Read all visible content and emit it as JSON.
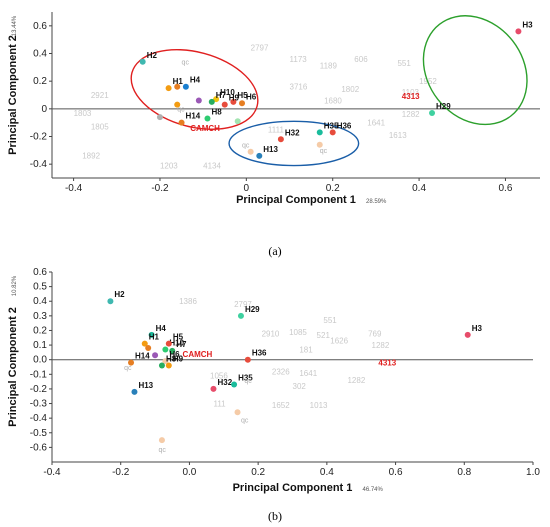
{
  "chart_data": [
    {
      "type": "scatter",
      "panel_caption": "(a)",
      "xlabel": "Principal Component 1",
      "ylabel": "Principal Component 2",
      "x_variance": "28.59%",
      "y_variance": "13.44%",
      "xlim": [
        -0.45,
        0.68
      ],
      "ylim": [
        -0.5,
        0.7
      ],
      "xticks": [
        -0.4,
        -0.2,
        0.0,
        0.2,
        0.4,
        0.6
      ],
      "yticks": [
        -0.4,
        -0.2,
        0.0,
        0.2,
        0.4,
        0.6
      ],
      "xtick_labels": [
        "-0.4",
        "-0.2",
        "0",
        "0.2",
        "0.4",
        "0.6"
      ],
      "ytick_labels": [
        "-0.4",
        "-0.2",
        "0",
        "0.2",
        "0.4",
        "0.6"
      ],
      "points": [
        {
          "label": "H2",
          "x": -0.24,
          "y": 0.34,
          "color": "#3fb8b0"
        },
        {
          "label": "H1",
          "x": -0.18,
          "y": 0.15,
          "color": "#f39c12"
        },
        {
          "label": "",
          "x": -0.16,
          "y": 0.16,
          "color": "#e67e22"
        },
        {
          "label": "H4",
          "x": -0.14,
          "y": 0.16,
          "color": "#1a7fd0"
        },
        {
          "label": "",
          "x": -0.11,
          "y": 0.06,
          "color": "#9b59b6"
        },
        {
          "label": "H10",
          "x": -0.07,
          "y": 0.07,
          "color": "#f1c40f"
        },
        {
          "label": "H7",
          "x": -0.08,
          "y": 0.05,
          "color": "#27ae60"
        },
        {
          "label": "H5",
          "x": -0.03,
          "y": 0.05,
          "color": "#e74c3c"
        },
        {
          "label": "H6",
          "x": -0.01,
          "y": 0.04,
          "color": "#e67e22"
        },
        {
          "label": "H9",
          "x": -0.05,
          "y": 0.03,
          "color": "#e74c3c"
        },
        {
          "label": "H8",
          "x": -0.09,
          "y": -0.07,
          "color": "#2ecc71"
        },
        {
          "label": "H14",
          "x": -0.15,
          "y": -0.1,
          "color": "#e67e22"
        },
        {
          "label": "",
          "x": -0.16,
          "y": 0.03,
          "color": "#f39c12"
        },
        {
          "label": "",
          "x": -0.2,
          "y": -0.06,
          "color": "#b0b0b0"
        },
        {
          "label": "",
          "x": -0.02,
          "y": -0.09,
          "color": "#a3e4b1"
        },
        {
          "label": "H13",
          "x": 0.03,
          "y": -0.34,
          "color": "#2980b9"
        },
        {
          "label": "H32",
          "x": 0.08,
          "y": -0.22,
          "color": "#e74c3c"
        },
        {
          "label": "H35",
          "x": 0.17,
          "y": -0.17,
          "color": "#1abc9c"
        },
        {
          "label": "H36",
          "x": 0.2,
          "y": -0.17,
          "color": "#e74c3c"
        },
        {
          "label": "",
          "x": 0.01,
          "y": -0.31,
          "color": "#f5cba7"
        },
        {
          "label": "",
          "x": 0.17,
          "y": -0.26,
          "color": "#f5cba7"
        },
        {
          "label": "H29",
          "x": 0.43,
          "y": -0.03,
          "color": "#3fd1a0"
        },
        {
          "label": "H3",
          "x": 0.63,
          "y": 0.56,
          "color": "#e74c6a"
        }
      ],
      "annotations": [
        {
          "text": "CAMCH",
          "x": -0.13,
          "y": -0.16,
          "color": "#e02020"
        },
        {
          "text": "4313",
          "x": 0.36,
          "y": 0.07,
          "color": "#e02020"
        },
        {
          "text": "qc",
          "x": -0.15,
          "y": 0.32,
          "color": "#111"
        },
        {
          "text": "qc",
          "x": -0.16,
          "y": -0.02,
          "color": "#111"
        },
        {
          "text": "qc",
          "x": -0.01,
          "y": -0.28,
          "color": "#111"
        },
        {
          "text": "qc",
          "x": 0.17,
          "y": -0.32,
          "color": "#111"
        }
      ],
      "ellipses": [
        {
          "cx": -0.12,
          "cy": 0.14,
          "rx": 0.15,
          "ry": 0.27,
          "color": "#e02020",
          "angle": -15
        },
        {
          "cx": 0.11,
          "cy": -0.25,
          "rx": 0.15,
          "ry": 0.16,
          "color": "#1a5ea8",
          "angle": 0
        },
        {
          "cx": 0.53,
          "cy": 0.28,
          "rx": 0.11,
          "ry": 0.42,
          "color": "#2ca02c",
          "angle": 38
        }
      ],
      "background_labels": [
        {
          "text": "2797",
          "x": 0.01,
          "y": 0.42
        },
        {
          "text": "1173",
          "x": 0.1,
          "y": 0.34
        },
        {
          "text": "1189",
          "x": 0.17,
          "y": 0.29
        },
        {
          "text": "606",
          "x": 0.25,
          "y": 0.34
        },
        {
          "text": "551",
          "x": 0.35,
          "y": 0.31
        },
        {
          "text": "1952",
          "x": 0.4,
          "y": 0.18
        },
        {
          "text": "1103",
          "x": 0.36,
          "y": 0.1
        },
        {
          "text": "1613",
          "x": 0.33,
          "y": -0.21
        },
        {
          "text": "1282",
          "x": 0.36,
          "y": -0.06
        },
        {
          "text": "3716",
          "x": 0.1,
          "y": 0.14
        },
        {
          "text": "1680",
          "x": 0.18,
          "y": 0.04
        },
        {
          "text": "1802",
          "x": 0.22,
          "y": 0.12
        },
        {
          "text": "1641",
          "x": 0.28,
          "y": -0.12
        },
        {
          "text": "2921",
          "x": -0.36,
          "y": 0.08
        },
        {
          "text": "1803",
          "x": -0.4,
          "y": -0.05
        },
        {
          "text": "1805",
          "x": -0.36,
          "y": -0.15
        },
        {
          "text": "1892",
          "x": -0.38,
          "y": -0.36
        },
        {
          "text": "1203",
          "x": -0.2,
          "y": -0.43
        },
        {
          "text": "4134",
          "x": -0.1,
          "y": -0.43
        },
        {
          "text": "1111",
          "x": 0.05,
          "y": -0.17
        }
      ]
    },
    {
      "type": "scatter",
      "panel_caption": "(b)",
      "xlabel": "Principal Component 1",
      "ylabel": "Principal Component 2",
      "x_variance": "46.74%",
      "y_variance": "10.82%",
      "xlim": [
        -0.4,
        1.0
      ],
      "ylim": [
        -0.7,
        0.6
      ],
      "xticks": [
        -0.4,
        -0.2,
        0.0,
        0.2,
        0.4,
        0.6,
        0.8,
        1.0
      ],
      "yticks": [
        -0.6,
        -0.5,
        -0.4,
        -0.3,
        -0.2,
        -0.1,
        0.0,
        0.1,
        0.2,
        0.3,
        0.4,
        0.5,
        0.6
      ],
      "xtick_labels": [
        "-0.4",
        "-0.2",
        "0.0",
        "0.2",
        "0.4",
        "0.6",
        "0.8",
        "1.0"
      ],
      "ytick_labels": [
        "-0.6",
        "-0.5",
        "-0.4",
        "-0.3",
        "-0.2",
        "-0.1",
        "0.0",
        "0.1",
        "0.2",
        "0.3",
        "0.4",
        "0.5",
        "0.6"
      ],
      "points": [
        {
          "label": "H2",
          "x": -0.23,
          "y": 0.4,
          "color": "#3fb8b0"
        },
        {
          "label": "H4",
          "x": -0.11,
          "y": 0.17,
          "color": "#1abc9c"
        },
        {
          "label": "H1",
          "x": -0.13,
          "y": 0.11,
          "color": "#f39c12"
        },
        {
          "label": "H10",
          "x": -0.07,
          "y": 0.07,
          "color": "#2ecc71"
        },
        {
          "label": "H5",
          "x": -0.06,
          "y": 0.11,
          "color": "#e74c3c"
        },
        {
          "label": "H7",
          "x": -0.05,
          "y": 0.06,
          "color": "#27ae60"
        },
        {
          "label": "",
          "x": -0.12,
          "y": 0.08,
          "color": "#e67e22"
        },
        {
          "label": "",
          "x": -0.1,
          "y": 0.03,
          "color": "#9b59b6"
        },
        {
          "label": "H14",
          "x": -0.17,
          "y": -0.02,
          "color": "#e67e22"
        },
        {
          "label": "H6",
          "x": -0.07,
          "y": -0.01,
          "color": "#f5cba7"
        },
        {
          "label": "H9",
          "x": -0.06,
          "y": -0.04,
          "color": "#f39c12"
        },
        {
          "label": "H8",
          "x": -0.08,
          "y": -0.04,
          "color": "#27ae60"
        },
        {
          "label": "H13",
          "x": -0.16,
          "y": -0.22,
          "color": "#2980b9"
        },
        {
          "label": "H29",
          "x": 0.15,
          "y": 0.3,
          "color": "#3fd1a0"
        },
        {
          "label": "H36",
          "x": 0.17,
          "y": 0.0,
          "color": "#e74c3c"
        },
        {
          "label": "H32",
          "x": 0.07,
          "y": -0.2,
          "color": "#e74c6a"
        },
        {
          "label": "H35",
          "x": 0.13,
          "y": -0.17,
          "color": "#1abc9c"
        },
        {
          "label": "",
          "x": 0.14,
          "y": -0.36,
          "color": "#f5cba7"
        },
        {
          "label": "",
          "x": -0.08,
          "y": -0.55,
          "color": "#f5cba7"
        },
        {
          "label": "H3",
          "x": 0.81,
          "y": 0.17,
          "color": "#e74c6a"
        }
      ],
      "annotations": [
        {
          "text": "CAMCH",
          "x": -0.02,
          "y": 0.02,
          "color": "#e02020"
        },
        {
          "text": "4313",
          "x": 0.55,
          "y": -0.04,
          "color": "#e02020"
        },
        {
          "text": "qc",
          "x": -0.19,
          "y": -0.07,
          "color": "#111"
        },
        {
          "text": "qc",
          "x": 0.16,
          "y": -0.16,
          "color": "#111"
        },
        {
          "text": "qc",
          "x": 0.15,
          "y": -0.43,
          "color": "#111"
        },
        {
          "text": "qc",
          "x": -0.09,
          "y": -0.63,
          "color": "#111"
        }
      ],
      "background_labels": [
        {
          "text": "1386",
          "x": -0.03,
          "y": 0.38
        },
        {
          "text": "2797",
          "x": 0.13,
          "y": 0.36
        },
        {
          "text": "551",
          "x": 0.39,
          "y": 0.25
        },
        {
          "text": "2910",
          "x": 0.21,
          "y": 0.16
        },
        {
          "text": "1085",
          "x": 0.29,
          "y": 0.17
        },
        {
          "text": "521",
          "x": 0.37,
          "y": 0.15
        },
        {
          "text": "181",
          "x": 0.32,
          "y": 0.05
        },
        {
          "text": "1626",
          "x": 0.41,
          "y": 0.11
        },
        {
          "text": "769",
          "x": 0.52,
          "y": 0.16
        },
        {
          "text": "1282",
          "x": 0.53,
          "y": 0.08
        },
        {
          "text": "1056",
          "x": 0.06,
          "y": -0.13
        },
        {
          "text": "2326",
          "x": 0.24,
          "y": -0.1
        },
        {
          "text": "1641",
          "x": 0.32,
          "y": -0.11
        },
        {
          "text": "1282",
          "x": 0.46,
          "y": -0.16
        },
        {
          "text": "302",
          "x": 0.3,
          "y": -0.2
        },
        {
          "text": "1013",
          "x": 0.35,
          "y": -0.33
        },
        {
          "text": "1652",
          "x": 0.24,
          "y": -0.33
        },
        {
          "text": "111",
          "x": 0.07,
          "y": -0.32
        }
      ]
    }
  ]
}
